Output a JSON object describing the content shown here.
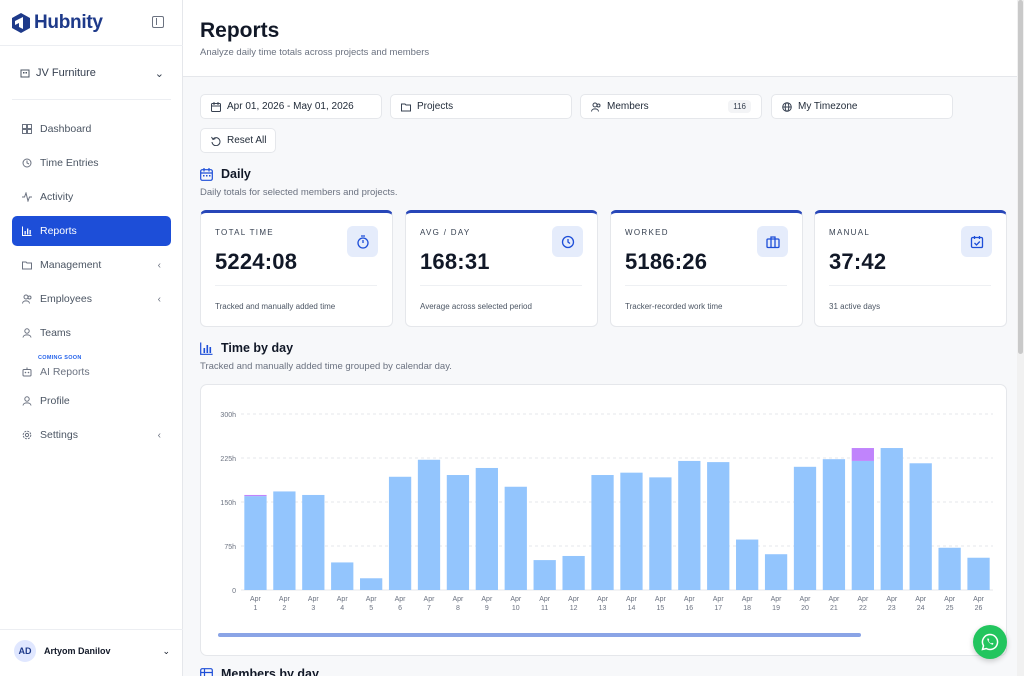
{
  "brand": {
    "name": "Hubnity"
  },
  "sidebar": {
    "org": "JV Furniture",
    "items": [
      {
        "label": "Dashboard",
        "icon": "grid-icon"
      },
      {
        "label": "Time Entries",
        "icon": "history-icon"
      },
      {
        "label": "Activity",
        "icon": "activity-icon"
      },
      {
        "label": "Reports",
        "icon": "bar-chart-icon",
        "active": true
      },
      {
        "label": "Management",
        "icon": "folder-icon"
      },
      {
        "label": "Employees",
        "icon": "users-icon"
      },
      {
        "label": "Teams",
        "icon": "user-icon"
      },
      {
        "label": "AI Reports",
        "icon": "ai-icon",
        "badge": "COMING SOON"
      },
      {
        "label": "Profile",
        "icon": "profile-icon"
      },
      {
        "label": "Settings",
        "icon": "gear-icon"
      }
    ],
    "user": {
      "initials": "AD",
      "name": "Artyom Danilov"
    }
  },
  "header": {
    "title": "Reports",
    "subtitle": "Analyze daily time totals across projects and members"
  },
  "filters": {
    "date_range": "Apr 01, 2026 - May 01, 2026",
    "projects": "Projects",
    "members": "Members",
    "members_count": "116",
    "timezone": "My Timezone",
    "reset": "Reset All"
  },
  "daily": {
    "title": "Daily",
    "subtitle": "Daily totals for selected members and projects.",
    "cards": [
      {
        "label": "TOTAL TIME",
        "value": "5224:08",
        "note": "Tracked and manually added time",
        "icon": "stopwatch-icon"
      },
      {
        "label": "AVG / DAY",
        "value": "168:31",
        "note": "Average across selected period",
        "icon": "clock-icon"
      },
      {
        "label": "WORKED",
        "value": "5186:26",
        "note": "Tracker-recorded work time",
        "icon": "briefcase-icon"
      },
      {
        "label": "MANUAL",
        "value": "37:42",
        "note": "31 active days",
        "icon": "calendar-check-icon"
      }
    ]
  },
  "time_by_day": {
    "title": "Time by day",
    "subtitle": "Tracked and manually added time grouped by calendar day."
  },
  "next_section": {
    "title": "Members by day"
  },
  "colors": {
    "accent": "#1d4ed8",
    "tracked": "#93c5fd",
    "manual": "#c084fc",
    "card_top": "#2746b8"
  },
  "chart_data": {
    "type": "bar",
    "stacked": true,
    "categories": [
      "Apr 1",
      "Apr 2",
      "Apr 3",
      "Apr 4",
      "Apr 5",
      "Apr 6",
      "Apr 7",
      "Apr 8",
      "Apr 9",
      "Apr 10",
      "Apr 11",
      "Apr 12",
      "Apr 13",
      "Apr 14",
      "Apr 15",
      "Apr 16",
      "Apr 17",
      "Apr 18",
      "Apr 19",
      "Apr 20",
      "Apr 21",
      "Apr 22",
      "Apr 23",
      "Apr 24",
      "Apr 25",
      "Apr 26"
    ],
    "series": [
      {
        "values": [
          160,
          168,
          162,
          47,
          20,
          193,
          222,
          196,
          208,
          176,
          51,
          58,
          196,
          200,
          192,
          220,
          218,
          86,
          61,
          210,
          223,
          220,
          242,
          216,
          72,
          55
        ]
      },
      {
        "values": [
          2,
          0,
          0,
          0,
          0,
          0,
          0,
          0,
          0,
          0,
          0,
          0,
          0,
          0,
          0,
          0,
          0,
          0,
          0,
          0,
          0,
          22,
          0,
          0,
          0,
          0
        ]
      }
    ],
    "yticks": [
      "300h",
      "225h",
      "150h",
      "75h",
      "0"
    ],
    "ylim": [
      0,
      300
    ],
    "grid": true
  }
}
